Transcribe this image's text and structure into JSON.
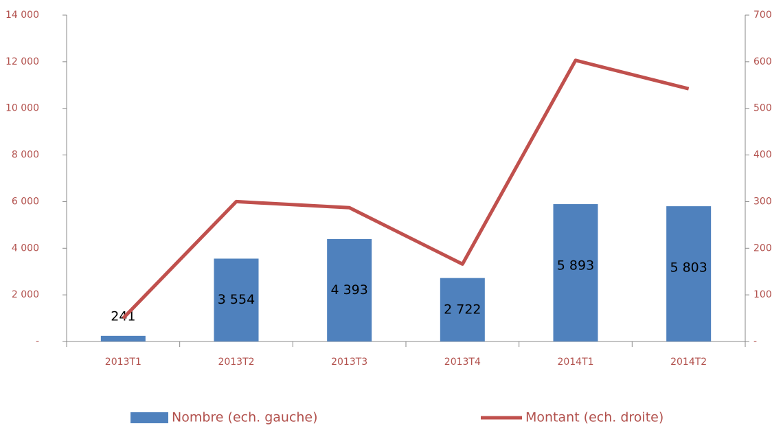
{
  "chart_data": {
    "type": "bar",
    "categories": [
      "2013T1",
      "2013T2",
      "2013T3",
      "2013T4",
      "2014T1",
      "2014T2"
    ],
    "series": [
      {
        "name": "Nombre (ech. gauche)",
        "type": "bar",
        "color": "#4f81bd",
        "values": [
          241,
          3554,
          4393,
          2722,
          5893,
          5803
        ],
        "value_labels": [
          "241",
          "3 554",
          "4 393",
          "2 722",
          "5 893",
          "5 803"
        ]
      },
      {
        "name": "Montant (ech. droite)",
        "type": "line",
        "axis": "y2",
        "color": "#c0504d",
        "values": [
          50,
          300,
          287,
          166,
          603,
          542
        ]
      }
    ],
    "ylim": [
      0,
      14000
    ],
    "yticks": [
      {
        "value": 0,
        "label": "-"
      },
      {
        "value": 2000,
        "label": "2 000"
      },
      {
        "value": 4000,
        "label": "4 000"
      },
      {
        "value": 6000,
        "label": "6 000"
      },
      {
        "value": 8000,
        "label": "8 000"
      },
      {
        "value": 10000,
        "label": "10 000"
      },
      {
        "value": 12000,
        "label": "12 000"
      },
      {
        "value": 14000,
        "label": "14 000"
      }
    ],
    "y2lim": [
      0,
      700
    ],
    "y2ticks": [
      {
        "value": 0,
        "label": "-"
      },
      100,
      200,
      300,
      400,
      500,
      600,
      700
    ],
    "grid": false,
    "legend": "bottom"
  }
}
